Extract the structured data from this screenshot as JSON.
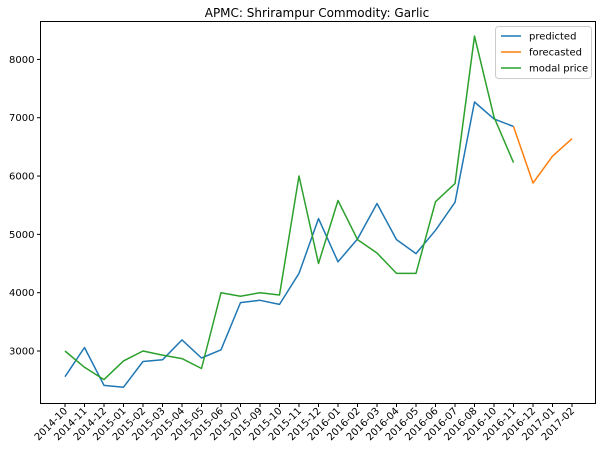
{
  "chart_data": {
    "type": "line",
    "title": "APMC: Shrirampur  Commodity: Garlic",
    "xlabel": "",
    "ylabel": "",
    "categories": [
      "2014-10",
      "2014-11",
      "2014-12",
      "2015-01",
      "2015-02",
      "2015-03",
      "2015-04",
      "2015-05",
      "2015-06",
      "2015-07",
      "2015-09",
      "2015-10",
      "2015-11",
      "2015-12",
      "2016-01",
      "2016-02",
      "2016-03",
      "2016-04",
      "2016-05",
      "2016-06",
      "2016-07",
      "2016-08",
      "2016-10",
      "2016-11",
      "2016-12",
      "2017-01",
      "2017-02"
    ],
    "ylim": [
      2100,
      8650
    ],
    "yticks": [
      3000,
      4000,
      5000,
      6000,
      7000,
      8000
    ],
    "grid": false,
    "legend": "top-right",
    "series": [
      {
        "name": "predicted",
        "color": "#1f77b4",
        "values": [
          2560,
          3060,
          2410,
          2380,
          2820,
          2850,
          3190,
          2880,
          3020,
          3830,
          3870,
          3800,
          4330,
          5270,
          4530,
          4920,
          5530,
          4910,
          4670,
          5070,
          5550,
          7270,
          6980,
          6850,
          null,
          null,
          null
        ]
      },
      {
        "name": "forecasted",
        "color": "#ff7f0e",
        "values": [
          null,
          null,
          null,
          null,
          null,
          null,
          null,
          null,
          null,
          null,
          null,
          null,
          null,
          null,
          null,
          null,
          null,
          null,
          null,
          null,
          null,
          null,
          null,
          6850,
          5880,
          6340,
          6640
        ]
      },
      {
        "name": "modal price",
        "color": "#2ca02c",
        "values": [
          3000,
          2720,
          2510,
          2830,
          3000,
          2930,
          2870,
          2700,
          4000,
          3940,
          4000,
          3960,
          6000,
          4500,
          5580,
          4910,
          4680,
          4330,
          4330,
          5560,
          5870,
          8400,
          7010,
          6230,
          null,
          null,
          null
        ]
      }
    ]
  }
}
